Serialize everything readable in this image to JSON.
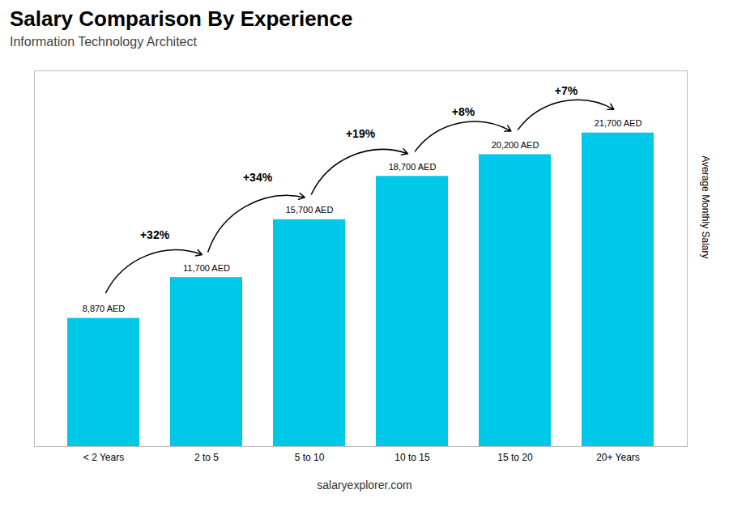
{
  "chart_data": {
    "type": "bar",
    "title": "Salary Comparison By Experience",
    "subtitle": "Information Technology Architect",
    "categories": [
      "< 2 Years",
      "2 to 5",
      "5 to 10",
      "10 to 15",
      "15 to 20",
      "20+ Years"
    ],
    "values": [
      8870,
      11700,
      15700,
      18700,
      20200,
      21700
    ],
    "value_labels": [
      "8,870 AED",
      "11,700 AED",
      "15,700 AED",
      "18,700 AED",
      "20,200 AED",
      "21,700 AED"
    ],
    "data_labels": true,
    "annotations": [
      "+32%",
      "+34%",
      "+19%",
      "+8%",
      "+7%"
    ],
    "ylabel": "Average Monthly Salary",
    "caption": "salaryexplorer.com",
    "ylim": [
      0,
      26000
    ],
    "tick_labels": "x",
    "grid": false,
    "color": "#00c8e8"
  }
}
